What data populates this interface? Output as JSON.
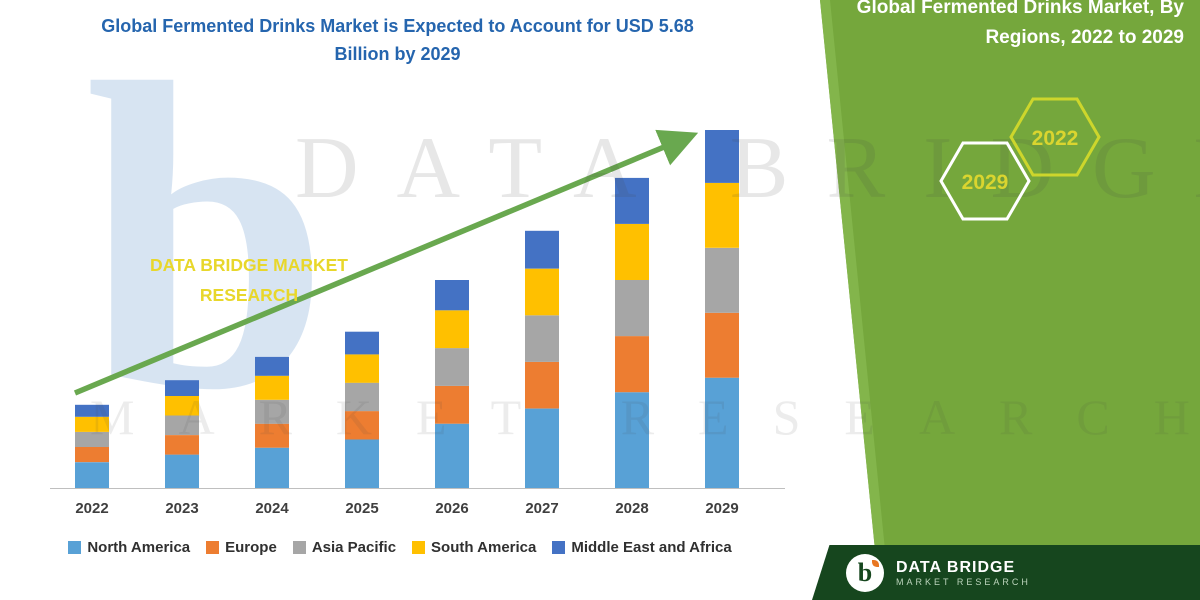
{
  "title": "Global Fermented Drinks Market is Expected to Account for USD 5.68 Billion by 2029",
  "chart_data": {
    "type": "bar",
    "stacked": true,
    "title": "Global Fermented Drinks Market is Expected to Account for USD 5.68 Billion by 2029",
    "unit": "USD Billion",
    "categories": [
      "2022",
      "2023",
      "2024",
      "2025",
      "2026",
      "2027",
      "2028",
      "2029"
    ],
    "series": [
      {
        "name": "North America",
        "color": "#58A1D6",
        "values": [
          0.41,
          0.53,
          0.64,
          0.77,
          1.02,
          1.26,
          1.52,
          1.75
        ]
      },
      {
        "name": "Europe",
        "color": "#ED7D31",
        "values": [
          0.24,
          0.31,
          0.38,
          0.45,
          0.6,
          0.74,
          0.89,
          1.03
        ]
      },
      {
        "name": "Asia Pacific",
        "color": "#A6A6A6",
        "values": [
          0.24,
          0.31,
          0.38,
          0.45,
          0.6,
          0.74,
          0.89,
          1.03
        ]
      },
      {
        "name": "South America",
        "color": "#FFC000",
        "values": [
          0.24,
          0.31,
          0.38,
          0.45,
          0.6,
          0.74,
          0.89,
          1.03
        ]
      },
      {
        "name": "Middle East and Africa",
        "color": "#4472C4",
        "values": [
          0.19,
          0.25,
          0.3,
          0.36,
          0.48,
          0.6,
          0.73,
          0.84
        ]
      }
    ],
    "totals": [
      1.32,
      1.71,
      2.08,
      2.48,
      3.3,
      4.08,
      4.92,
      5.68
    ],
    "ylim": [
      0,
      5.68
    ],
    "grid": false,
    "legend_position": "bottom",
    "trend_arrow": true,
    "arrow_color": "#69A84F"
  },
  "side_panel": {
    "title": "Global Fermented Drinks Market, By Regions, 2022 to 2029",
    "hexagons": [
      "2029",
      "2022"
    ],
    "brand_line1": "DATA BRIDGE MARKET",
    "brand_line2": "RESEARCH",
    "panel_color": "#75A73C",
    "accent_yellow": "#E8D72B"
  },
  "watermark": {
    "letter": "b",
    "line1": "DATA BRIDGE",
    "line2": "MARKET RESEARCH"
  },
  "footer": {
    "logo_letter": "b",
    "brand": "DATA BRIDGE",
    "sub": "MARKET RESEARCH"
  }
}
